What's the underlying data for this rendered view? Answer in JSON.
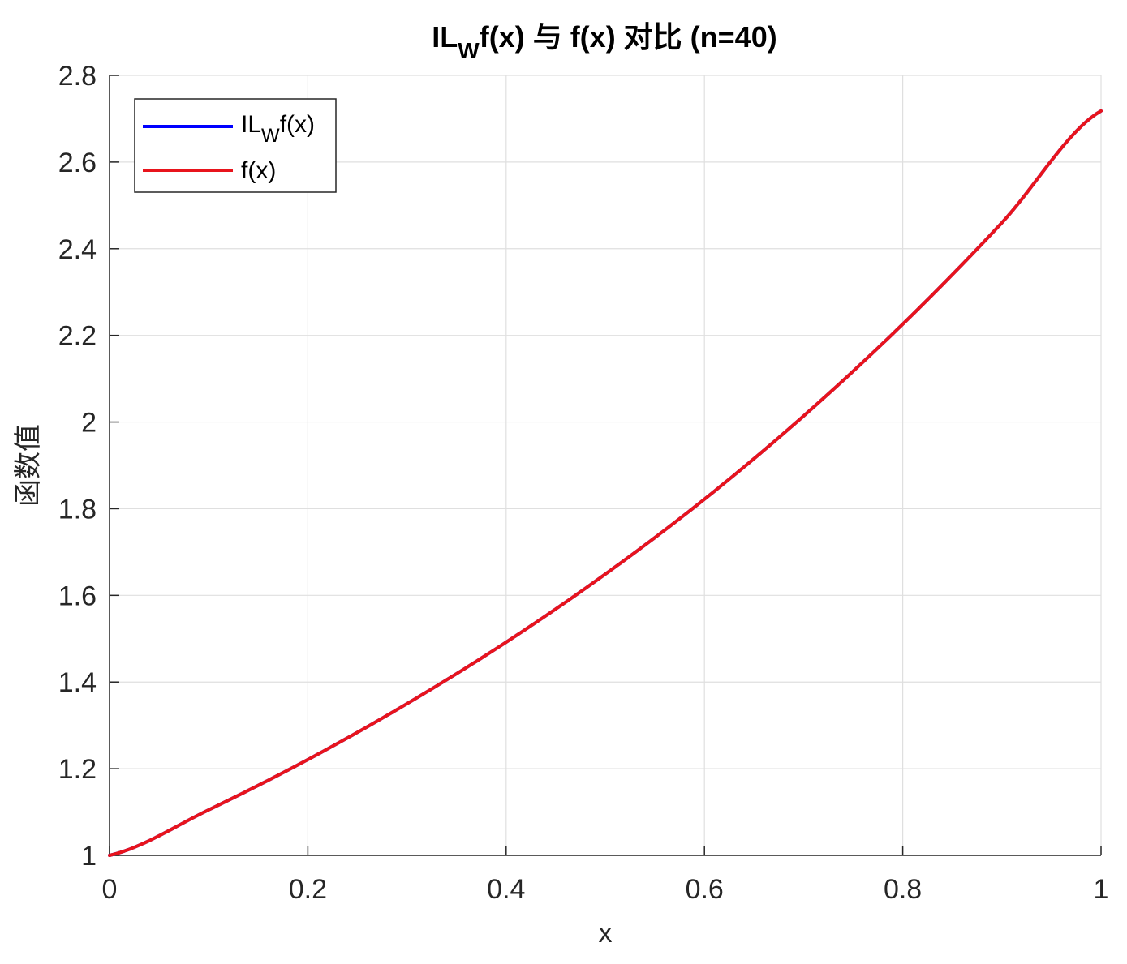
{
  "chart_data": {
    "type": "line",
    "title": {
      "prefix": "IL",
      "subscript": "W",
      "suffix": "f(x) 与 f(x) 对比 (n=40)"
    },
    "xlabel": "x",
    "ylabel": "函数值",
    "xlim": [
      0,
      1
    ],
    "ylim": [
      1,
      2.8
    ],
    "xticks": [
      0,
      0.2,
      0.4,
      0.6,
      0.8,
      1
    ],
    "xtick_labels": [
      "0",
      "0.2",
      "0.4",
      "0.6",
      "0.8",
      "1"
    ],
    "yticks": [
      1,
      1.2,
      1.4,
      1.6,
      1.8,
      2,
      2.2,
      2.4,
      2.6,
      2.8
    ],
    "ytick_labels": [
      "1",
      "1.2",
      "1.4",
      "1.6",
      "1.8",
      "2",
      "2.2",
      "2.4",
      "2.6",
      "2.8"
    ],
    "grid": true,
    "legend_position": "top-left",
    "x": [
      0,
      0.1,
      0.2,
      0.3,
      0.4,
      0.5,
      0.6,
      0.7,
      0.8,
      0.9,
      1.0
    ],
    "series": [
      {
        "name": {
          "prefix": "IL",
          "subscript": "W",
          "suffix": "f(x)"
        },
        "color": "#0000ff",
        "values": [
          1.0,
          1.105,
          1.221,
          1.35,
          1.492,
          1.649,
          1.822,
          2.014,
          2.226,
          2.46,
          2.718
        ]
      },
      {
        "name": {
          "prefix": "f(x)",
          "subscript": "",
          "suffix": ""
        },
        "color": "#e8141c",
        "values": [
          1.0,
          1.105,
          1.221,
          1.35,
          1.492,
          1.649,
          1.822,
          2.014,
          2.226,
          2.46,
          2.718
        ]
      }
    ]
  }
}
